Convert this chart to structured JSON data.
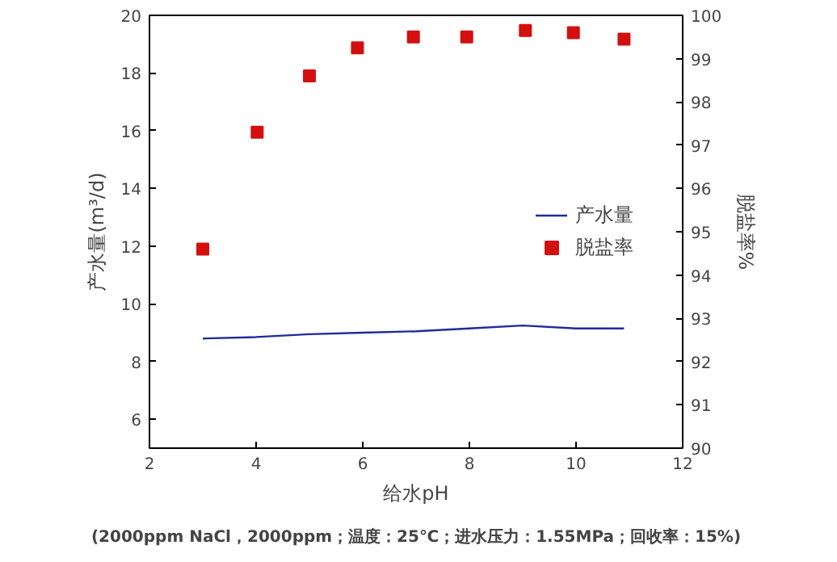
{
  "chart_data": {
    "type": "line",
    "xlabel": "给水pH",
    "ylabel": "产水量(m³/d)",
    "y2label": "脱盐率%",
    "annotations": [
      "(2000ppm NaCl，2000ppm；温度：25℃；进水压力：1.55MPa；回收率：15%)"
    ],
    "x": [
      3,
      4,
      5,
      6,
      7,
      8,
      9,
      10,
      10.9
    ],
    "series": [
      {
        "name": "产水量",
        "color": "#1f2a9c",
        "values": [
          8.8,
          8.85,
          8.95,
          9.0,
          9.05,
          9.15,
          9.25,
          9.15,
          9.15
        ]
      },
      {
        "name": "脱盐率",
        "type": "scatter",
        "axis": "y2",
        "color": "#d40f0f",
        "marker": "square",
        "x": [
          3,
          4.02,
          5,
          5.9,
          6.95,
          7.95,
          9.05,
          9.95,
          10.9
        ],
        "values": [
          94.6,
          97.3,
          98.6,
          99.25,
          99.5,
          99.5,
          99.65,
          99.6,
          99.45
        ]
      }
    ],
    "xlim": [
      2,
      12
    ],
    "xticks": [
      2,
      4,
      6,
      8,
      10,
      12
    ],
    "ylim": [
      5,
      20
    ],
    "yticks": [
      6,
      8,
      10,
      12,
      14,
      16,
      18,
      20
    ],
    "y2lim": [
      90,
      100
    ],
    "y2ticks": [
      90,
      91,
      92,
      93,
      94,
      95,
      96,
      97,
      98,
      99,
      100
    ],
    "grid": false,
    "legend": "right"
  }
}
